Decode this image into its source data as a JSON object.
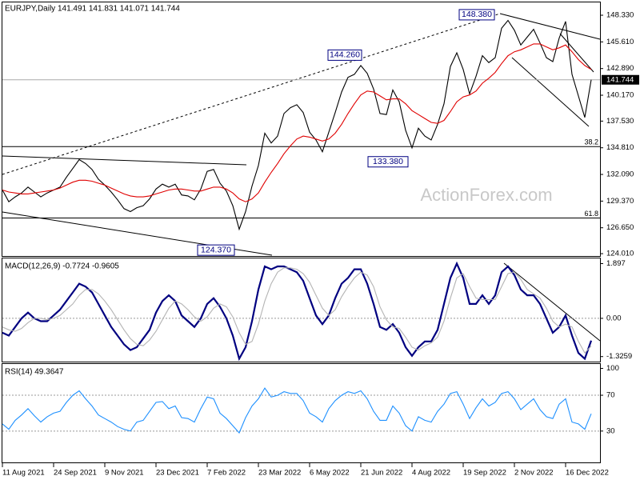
{
  "chart_data": [
    {
      "type": "line",
      "title": "EURJPY,Daily  141.491 141.831 141.071 141.744",
      "categories": [
        "11 Aug 2021",
        null,
        null,
        null,
        null,
        null,
        null,
        null,
        "24 Sep 2021",
        null,
        null,
        null,
        null,
        null,
        null,
        null,
        "9 Nov 2021",
        null,
        null,
        null,
        null,
        null,
        null,
        null,
        "23 Dec 2021",
        null,
        null,
        null,
        null,
        null,
        null,
        null,
        "7 Feb 2022",
        null,
        null,
        null,
        null,
        null,
        null,
        null,
        "23 Mar 2022",
        null,
        null,
        null,
        null,
        null,
        null,
        null,
        "6 May 2022",
        null,
        null,
        null,
        null,
        null,
        null,
        null,
        "21 Jun 2022",
        null,
        null,
        null,
        null,
        null,
        null,
        null,
        "4 Aug 2022",
        null,
        null,
        null,
        null,
        null,
        null,
        null,
        "19 Sep 2022",
        null,
        null,
        null,
        null,
        null,
        null,
        null,
        "2 Nov 2022",
        null,
        null,
        null,
        null,
        null,
        null,
        null,
        "16 Dec 2022",
        null,
        null,
        null,
        null
      ],
      "series": [
        {
          "color": "#000000",
          "values": [
            130.5,
            129.3,
            129.8,
            130.2,
            130.8,
            130.3,
            129.8,
            130.2,
            130.5,
            130.8,
            131.8,
            132.7,
            133.6,
            133.2,
            132.6,
            131.6,
            131.0,
            130.3,
            129.5,
            128.6,
            128.3,
            128.7,
            128.9,
            129.6,
            130.6,
            131.1,
            130.8,
            131.1,
            130.0,
            129.9,
            129.5,
            130.6,
            132.4,
            132.6,
            131.2,
            130.4,
            128.9,
            126.5,
            128.3,
            130.9,
            133.0,
            136.3,
            135.3,
            136.0,
            138.3,
            138.9,
            139.2,
            138.4,
            136.4,
            135.6,
            134.4,
            136.4,
            138.4,
            140.5,
            142.0,
            142.3,
            143.2,
            142.4,
            140.8,
            138.3,
            138.2,
            140.7,
            139.5,
            136.6,
            134.8,
            136.8,
            136.0,
            135.6,
            137.2,
            139.3,
            143.1,
            144.5,
            142.8,
            140.3,
            142.1,
            144.2,
            143.5,
            144.0,
            147.0,
            147.8,
            146.8,
            145.3,
            146.1,
            146.9,
            145.5,
            144.0,
            143.6,
            146.0,
            147.7,
            142.3,
            140.1,
            137.9,
            141.744
          ]
        },
        {
          "color": "#e00000",
          "values": [
            130.5,
            130.3,
            130.2,
            130.1,
            130.1,
            130.2,
            130.3,
            130.4,
            130.5,
            130.7,
            131.0,
            131.3,
            131.5,
            131.5,
            131.4,
            131.2,
            131.0,
            130.7,
            130.4,
            130.1,
            129.9,
            129.8,
            129.8,
            129.9,
            130.1,
            130.3,
            130.5,
            130.6,
            130.6,
            130.5,
            130.4,
            130.4,
            130.6,
            130.8,
            130.8,
            130.6,
            130.2,
            129.6,
            129.3,
            129.6,
            130.2,
            131.3,
            132.3,
            133.2,
            134.2,
            135.0,
            135.7,
            136.0,
            135.9,
            135.7,
            135.5,
            135.7,
            136.3,
            137.2,
            138.3,
            139.3,
            140.2,
            140.6,
            140.5,
            140.1,
            139.7,
            139.8,
            139.8,
            139.3,
            138.6,
            138.2,
            137.8,
            137.4,
            137.3,
            137.6,
            138.5,
            139.5,
            140.0,
            140.2,
            140.6,
            141.4,
            141.9,
            142.5,
            143.4,
            144.2,
            144.6,
            144.8,
            145.1,
            145.4,
            145.4,
            145.1,
            144.8,
            145.0,
            145.3,
            144.6,
            143.8,
            143.2,
            142.8
          ]
        }
      ],
      "ylim": [
        123.77,
        149.72
      ],
      "yticks": [
        {
          "value": 148.33,
          "label": "148.330"
        },
        {
          "value": 145.61,
          "label": "145.610"
        },
        {
          "value": 142.89,
          "label": "142.890"
        },
        {
          "value": 140.17,
          "label": "140.170"
        },
        {
          "value": 137.53,
          "label": "137.530"
        },
        {
          "value": 134.81,
          "label": "134.810"
        },
        {
          "value": 132.09,
          "label": "132.090"
        },
        {
          "value": 129.37,
          "label": "129.370"
        },
        {
          "value": 126.65,
          "label": "126.650"
        },
        {
          "value": 124.01,
          "label": "124.010"
        }
      ],
      "last_price": 141.744,
      "annotations": [
        {
          "value": 148.38,
          "label": "148.380"
        },
        {
          "value": 144.26,
          "label": "144.260"
        },
        {
          "value": 133.38,
          "label": "133.380"
        },
        {
          "value": 124.37,
          "label": "124.370"
        }
      ],
      "fib_levels": [
        {
          "ratio": 38.2,
          "price": 134.93
        },
        {
          "ratio": 61.8,
          "price": 127.65
        }
      ],
      "watermark": "ActionForex.com"
    },
    {
      "type": "line",
      "title": "MACD(12,26,9) -0.7724 -0.9605",
      "series": [
        {
          "color": "#000080",
          "values": [
            -0.5,
            -0.6,
            -0.3,
            0.0,
            0.2,
            0.0,
            -0.1,
            -0.1,
            0.1,
            0.3,
            0.6,
            0.9,
            1.2,
            1.1,
            0.9,
            0.5,
            0.1,
            -0.3,
            -0.6,
            -0.9,
            -1.1,
            -1.0,
            -0.7,
            -0.4,
            0.2,
            0.6,
            0.8,
            0.6,
            0.1,
            -0.1,
            -0.3,
            0.0,
            0.5,
            0.7,
            0.4,
            0.0,
            -0.6,
            -1.4,
            -1.0,
            -0.1,
            1.0,
            1.8,
            1.7,
            1.8,
            1.8,
            1.7,
            1.6,
            1.3,
            0.7,
            0.1,
            -0.2,
            0.1,
            0.7,
            1.2,
            1.4,
            1.7,
            1.7,
            1.2,
            0.5,
            -0.3,
            -0.4,
            -0.2,
            -0.5,
            -1.0,
            -1.3,
            -1.0,
            -0.8,
            -0.8,
            -0.4,
            0.5,
            1.4,
            1.9,
            1.4,
            0.5,
            0.5,
            0.8,
            0.5,
            0.8,
            1.6,
            1.8,
            1.5,
            1.0,
            0.8,
            0.8,
            0.5,
            0.0,
            -0.5,
            -0.3,
            0.1,
            -0.6,
            -1.2,
            -1.4,
            -0.7724
          ]
        },
        {
          "color": "#b4b4b4",
          "values": [
            -0.3,
            -0.4,
            -0.45,
            -0.35,
            -0.15,
            0.0,
            0.0,
            -0.05,
            0.0,
            0.1,
            0.3,
            0.5,
            0.8,
            1.0,
            1.0,
            0.85,
            0.6,
            0.3,
            -0.05,
            -0.4,
            -0.7,
            -0.9,
            -0.95,
            -0.75,
            -0.45,
            -0.05,
            0.35,
            0.6,
            0.5,
            0.3,
            0.05,
            -0.1,
            0.05,
            0.35,
            0.5,
            0.4,
            0.05,
            -0.5,
            -0.9,
            -0.8,
            -0.2,
            0.6,
            1.2,
            1.6,
            1.75,
            1.75,
            1.7,
            1.55,
            1.25,
            0.8,
            0.35,
            0.1,
            0.3,
            0.75,
            1.1,
            1.4,
            1.6,
            1.5,
            1.1,
            0.4,
            -0.05,
            -0.3,
            -0.35,
            -0.65,
            -1.0,
            -1.1,
            -0.95,
            -0.85,
            -0.65,
            -0.1,
            0.7,
            1.4,
            1.55,
            1.1,
            0.7,
            0.65,
            0.65,
            0.65,
            1.1,
            1.55,
            1.6,
            1.35,
            1.0,
            0.85,
            0.7,
            0.35,
            -0.1,
            -0.3,
            -0.2,
            -0.3,
            -0.8,
            -1.2,
            -0.9605
          ]
        }
      ],
      "ylim": [
        -1.5,
        2.05
      ],
      "yticks": [
        1.897,
        {
          "value": 0,
          "label": "0.00"
        },
        -1.3259
      ],
      "levels": [
        0
      ]
    },
    {
      "type": "line",
      "title": "RSI(14) 49.3647",
      "series": [
        {
          "color": "#1e90ff",
          "values": [
            38,
            32,
            42,
            48,
            55,
            47,
            40,
            46,
            50,
            52,
            62,
            70,
            75,
            66,
            58,
            48,
            44,
            40,
            35,
            32,
            30,
            40,
            42,
            52,
            62,
            63,
            55,
            58,
            45,
            44,
            40,
            55,
            68,
            66,
            50,
            44,
            36,
            28,
            45,
            58,
            66,
            78,
            68,
            70,
            74,
            72,
            72,
            64,
            50,
            46,
            40,
            55,
            64,
            70,
            74,
            72,
            75,
            66,
            52,
            42,
            42,
            58,
            50,
            36,
            30,
            46,
            42,
            40,
            52,
            60,
            72,
            74,
            60,
            44,
            56,
            66,
            58,
            62,
            72,
            74,
            66,
            54,
            60,
            66,
            54,
            46,
            44,
            60,
            66,
            40,
            38,
            32,
            49.3647
          ]
        }
      ],
      "ylim": [
        -5,
        104
      ],
      "yticks": [
        100,
        70,
        30
      ],
      "levels": [
        70,
        30
      ]
    }
  ]
}
